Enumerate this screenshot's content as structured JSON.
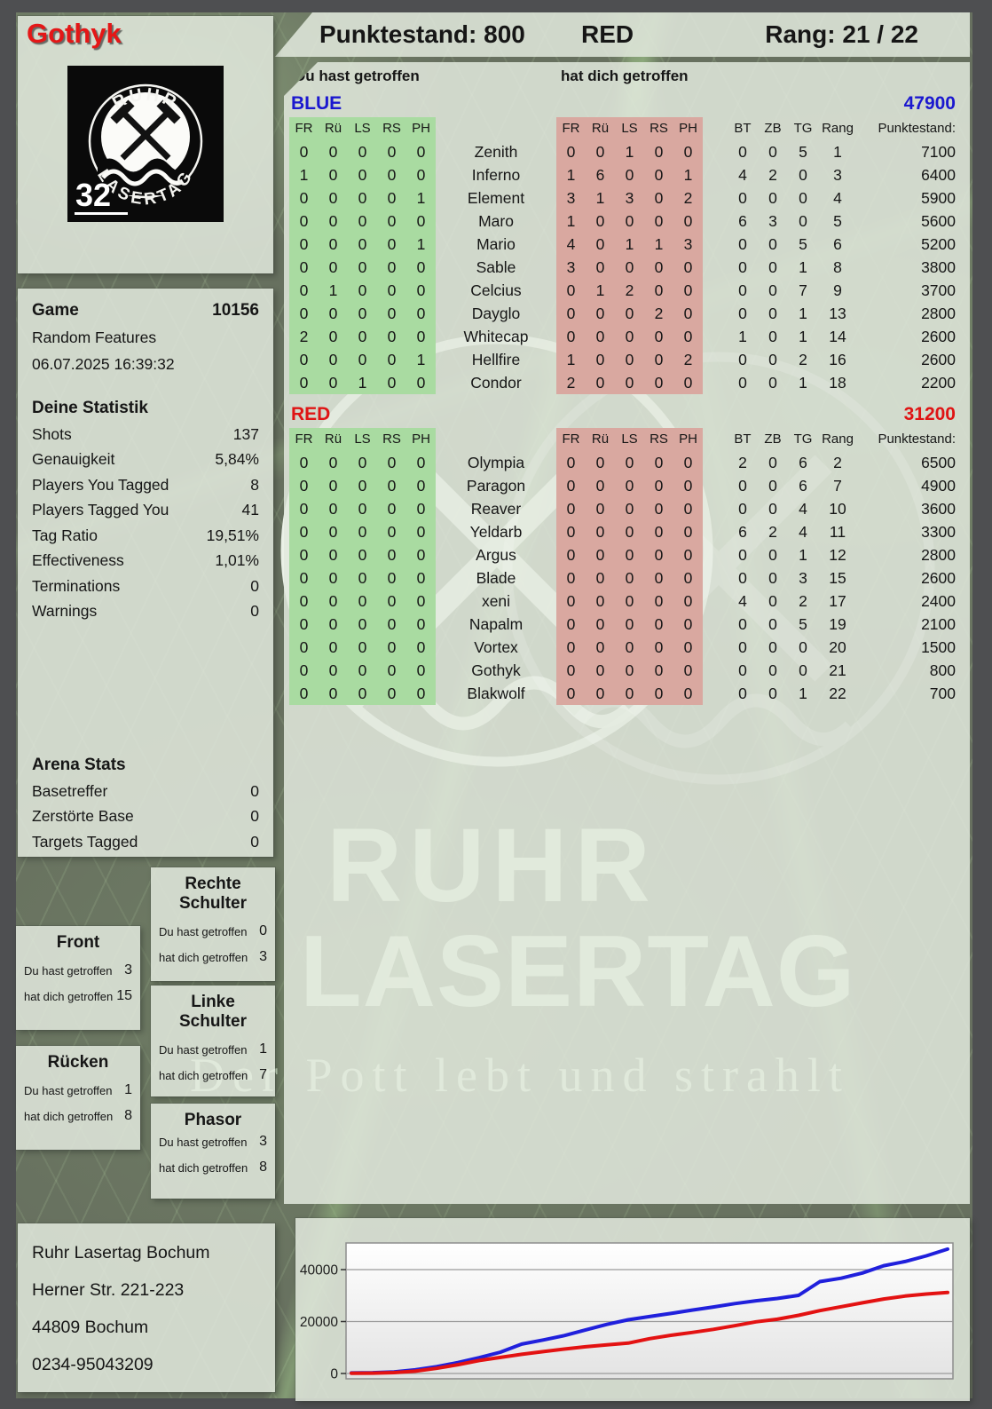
{
  "player": {
    "name": "Gothyk"
  },
  "header": {
    "punktestand": "Punktestand: 800",
    "team": "RED",
    "rang": "Rang: 21 / 22"
  },
  "logo": {
    "top_text": "RUHR",
    "bottom_text": "LASERTAG",
    "badge": "32"
  },
  "game": {
    "label": "Game",
    "number": "10156",
    "mode": "Random Features",
    "datetime": "06.07.2025 16:39:32"
  },
  "stats": {
    "title": "Deine Statistik",
    "rows": [
      [
        "Shots",
        "137"
      ],
      [
        "Genauigkeit",
        "5,84%"
      ],
      [
        "Players You Tagged",
        "8"
      ],
      [
        "Players Tagged You",
        "41"
      ],
      [
        "Tag Ratio",
        "19,51%"
      ],
      [
        "Effectiveness",
        "1,01%"
      ],
      [
        "Terminations",
        "0"
      ],
      [
        "Warnings",
        "0"
      ]
    ]
  },
  "arena": {
    "title": "Arena Stats",
    "rows": [
      [
        "Basetreffer",
        "0"
      ],
      [
        "Zerstörte Base",
        "0"
      ],
      [
        "Targets Tagged",
        "0"
      ]
    ]
  },
  "hitzone_labels": {
    "you": "Du hast getroffen",
    "them": "hat dich getroffen"
  },
  "hitzones": [
    {
      "title": "Front",
      "you": "3",
      "them": "15"
    },
    {
      "title": "Rücken",
      "you": "1",
      "them": "8"
    },
    {
      "title": "Rechte Schulter",
      "you": "0",
      "them": "3"
    },
    {
      "title": "Linke Schulter",
      "you": "1",
      "them": "7"
    },
    {
      "title": "Phasor",
      "you": "3",
      "them": "8"
    }
  ],
  "scoreboard": {
    "you_header": "Du hast getroffen",
    "them_header": "hat dich getroffen",
    "col_headers": [
      "FR",
      "Rü",
      "LS",
      "RS",
      "PH"
    ],
    "right_headers": [
      "BT",
      "ZB",
      "TG",
      "Rang",
      "Punktestand:"
    ],
    "teams": [
      {
        "name": "BLUE",
        "total": "47900",
        "color": "#1b18cf",
        "rows": [
          [
            [
              0,
              0,
              0,
              0,
              0
            ],
            "Zenith",
            [
              0,
              0,
              1,
              0,
              0
            ],
            0,
            0,
            5,
            1,
            7100
          ],
          [
            [
              1,
              0,
              0,
              0,
              0
            ],
            "Inferno",
            [
              1,
              6,
              0,
              0,
              1
            ],
            4,
            2,
            0,
            3,
            6400
          ],
          [
            [
              0,
              0,
              0,
              0,
              1
            ],
            "Element",
            [
              3,
              1,
              3,
              0,
              2
            ],
            0,
            0,
            0,
            4,
            5900
          ],
          [
            [
              0,
              0,
              0,
              0,
              0
            ],
            "Maro",
            [
              1,
              0,
              0,
              0,
              0
            ],
            6,
            3,
            0,
            5,
            5600
          ],
          [
            [
              0,
              0,
              0,
              0,
              1
            ],
            "Mario",
            [
              4,
              0,
              1,
              1,
              3
            ],
            0,
            0,
            5,
            6,
            5200
          ],
          [
            [
              0,
              0,
              0,
              0,
              0
            ],
            "Sable",
            [
              3,
              0,
              0,
              0,
              0
            ],
            0,
            0,
            1,
            8,
            3800
          ],
          [
            [
              0,
              1,
              0,
              0,
              0
            ],
            "Celcius",
            [
              0,
              1,
              2,
              0,
              0
            ],
            0,
            0,
            7,
            9,
            3700
          ],
          [
            [
              0,
              0,
              0,
              0,
              0
            ],
            "Dayglo",
            [
              0,
              0,
              0,
              2,
              0
            ],
            0,
            0,
            1,
            13,
            2800
          ],
          [
            [
              2,
              0,
              0,
              0,
              0
            ],
            "Whitecap",
            [
              0,
              0,
              0,
              0,
              0
            ],
            1,
            0,
            1,
            14,
            2600
          ],
          [
            [
              0,
              0,
              0,
              0,
              1
            ],
            "Hellfire",
            [
              1,
              0,
              0,
              0,
              2
            ],
            0,
            0,
            2,
            16,
            2600
          ],
          [
            [
              0,
              0,
              1,
              0,
              0
            ],
            "Condor",
            [
              2,
              0,
              0,
              0,
              0
            ],
            0,
            0,
            1,
            18,
            2200
          ]
        ]
      },
      {
        "name": "RED",
        "total": "31200",
        "color": "#df1414",
        "rows": [
          [
            [
              0,
              0,
              0,
              0,
              0
            ],
            "Olympia",
            [
              0,
              0,
              0,
              0,
              0
            ],
            2,
            0,
            6,
            2,
            6500
          ],
          [
            [
              0,
              0,
              0,
              0,
              0
            ],
            "Paragon",
            [
              0,
              0,
              0,
              0,
              0
            ],
            0,
            0,
            6,
            7,
            4900
          ],
          [
            [
              0,
              0,
              0,
              0,
              0
            ],
            "Reaver",
            [
              0,
              0,
              0,
              0,
              0
            ],
            0,
            0,
            4,
            10,
            3600
          ],
          [
            [
              0,
              0,
              0,
              0,
              0
            ],
            "Yeldarb",
            [
              0,
              0,
              0,
              0,
              0
            ],
            6,
            2,
            4,
            11,
            3300
          ],
          [
            [
              0,
              0,
              0,
              0,
              0
            ],
            "Argus",
            [
              0,
              0,
              0,
              0,
              0
            ],
            0,
            0,
            1,
            12,
            2800
          ],
          [
            [
              0,
              0,
              0,
              0,
              0
            ],
            "Blade",
            [
              0,
              0,
              0,
              0,
              0
            ],
            0,
            0,
            3,
            15,
            2600
          ],
          [
            [
              0,
              0,
              0,
              0,
              0
            ],
            "xeni",
            [
              0,
              0,
              0,
              0,
              0
            ],
            4,
            0,
            2,
            17,
            2400
          ],
          [
            [
              0,
              0,
              0,
              0,
              0
            ],
            "Napalm",
            [
              0,
              0,
              0,
              0,
              0
            ],
            0,
            0,
            5,
            19,
            2100
          ],
          [
            [
              0,
              0,
              0,
              0,
              0
            ],
            "Vortex",
            [
              0,
              0,
              0,
              0,
              0
            ],
            0,
            0,
            0,
            20,
            1500
          ],
          [
            [
              0,
              0,
              0,
              0,
              0
            ],
            "Gothyk",
            [
              0,
              0,
              0,
              0,
              0
            ],
            0,
            0,
            0,
            21,
            800
          ],
          [
            [
              0,
              0,
              0,
              0,
              0
            ],
            "Blakwolf",
            [
              0,
              0,
              0,
              0,
              0
            ],
            0,
            0,
            1,
            22,
            700
          ]
        ]
      }
    ]
  },
  "address": {
    "lines": [
      "Ruhr Lasertag Bochum",
      "Herner Str. 221-223",
      "44809 Bochum",
      "0234-95043209"
    ]
  },
  "watermark": {
    "line1": "RUHR",
    "line2": "LASERTAG",
    "line3": "Der Pott lebt und strahlt"
  },
  "chart_data": {
    "type": "line",
    "title": "",
    "xlabel": "",
    "ylabel": "",
    "x_description": "cumulative team score over game time (evenly spaced samples)",
    "ylim": [
      0,
      50000
    ],
    "yticks": [
      0,
      20000,
      40000
    ],
    "grid": true,
    "legend_position": "none",
    "series": [
      {
        "name": "BLUE",
        "color": "#2020dc",
        "values": [
          200,
          300,
          600,
          1400,
          2600,
          4200,
          6100,
          8200,
          11300,
          12900,
          14600,
          16800,
          18900,
          20700,
          21900,
          23100,
          24400,
          25600,
          26900,
          28000,
          28900,
          30100,
          35400,
          36700,
          38700,
          41500,
          43100,
          45300,
          47900
        ]
      },
      {
        "name": "RED",
        "color": "#e31212",
        "values": [
          100,
          150,
          350,
          900,
          2000,
          3400,
          5000,
          6200,
          7400,
          8400,
          9400,
          10300,
          11000,
          11700,
          13400,
          14700,
          15800,
          17000,
          18400,
          19900,
          20900,
          22400,
          24200,
          25700,
          27200,
          28700,
          29800,
          30600,
          31200
        ]
      }
    ]
  }
}
